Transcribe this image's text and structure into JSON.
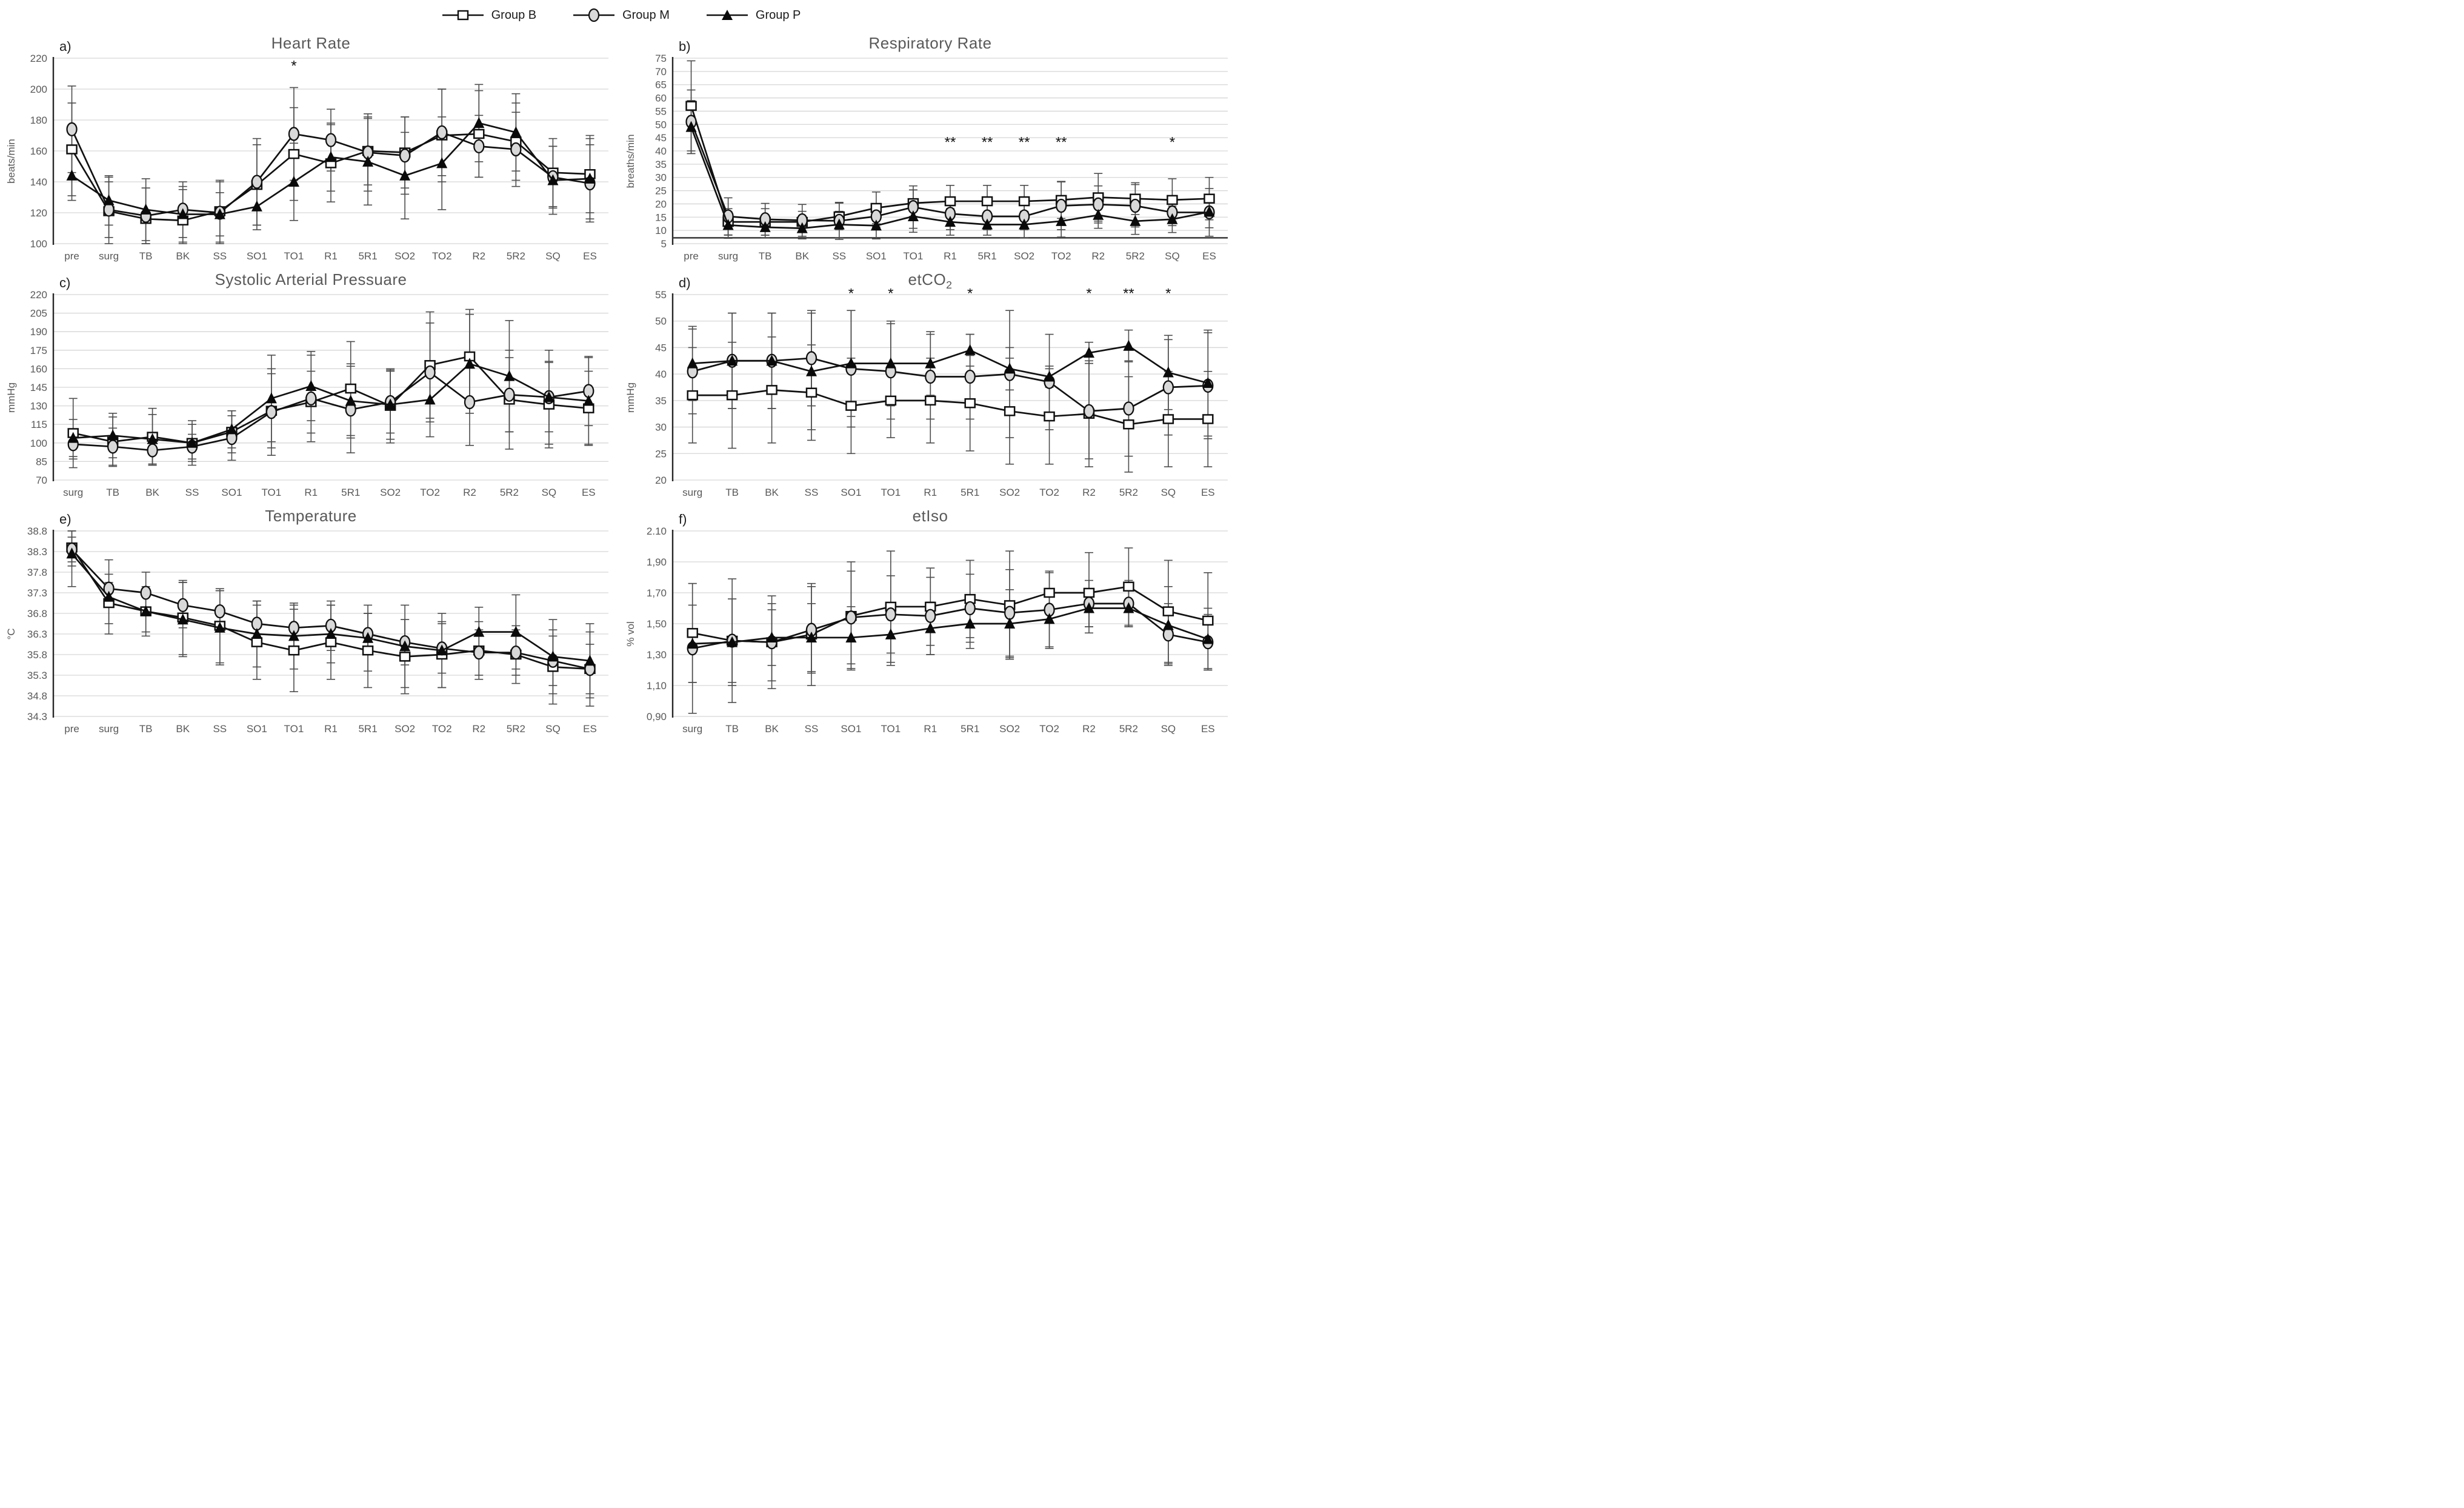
{
  "legend": {
    "items": [
      {
        "label": "Group B",
        "marker": "square"
      },
      {
        "label": "Group M",
        "marker": "circle"
      },
      {
        "label": "Group P",
        "marker": "triangle"
      }
    ]
  },
  "style": {
    "line_color": "#111111",
    "error_color": "#4d4d4d",
    "grid_color": "#d6d6d6",
    "axis_color": "#262626",
    "title_color": "#595959",
    "tick_color": "#595959",
    "square_fill": "#ffffff",
    "circle_fill": "#d9d9d9",
    "triangle_fill": "#0a0a0a",
    "background": "#ffffff"
  },
  "chart_data": [
    {
      "type": "line",
      "panel_label": "a)",
      "title": "Heart Rate",
      "title_sub": "",
      "ylabel": "beats/min",
      "ylim": [
        100,
        220
      ],
      "ytick_values": [
        220,
        200,
        180,
        160,
        140,
        120,
        100
      ],
      "ytick_labels": [
        "220",
        "200",
        "180",
        "160",
        "140",
        "120",
        "100"
      ],
      "categories": [
        "pre",
        "surg",
        "TB",
        "BK",
        "SS",
        "SO1",
        "TO1",
        "R1",
        "5R1",
        "SO2",
        "TO2",
        "R2",
        "5R2",
        "SQ",
        "ES"
      ],
      "baseline": null,
      "series": [
        {
          "name": "Group B",
          "marker": "square",
          "values": [
            161,
            121,
            116,
            115,
            121,
            138,
            158,
            152,
            160,
            159,
            170,
            171,
            166,
            146,
            145
          ],
          "errors": [
            30,
            22,
            20,
            20,
            20,
            26,
            30,
            25,
            22,
            23,
            30,
            28,
            25,
            22,
            25
          ]
        },
        {
          "name": "Group M",
          "marker": "circle",
          "values": [
            174,
            122,
            118,
            122,
            120,
            140,
            171,
            167,
            159,
            157,
            172,
            163,
            161,
            143,
            139
          ],
          "errors": [
            28,
            18,
            18,
            18,
            20,
            28,
            30,
            20,
            25,
            25,
            28,
            20,
            24,
            20,
            25
          ]
        },
        {
          "name": "Group P",
          "marker": "triangle",
          "values": [
            144,
            128,
            122,
            119,
            119,
            124,
            140,
            156,
            153,
            144,
            152,
            178,
            172,
            141,
            142
          ],
          "errors": [
            16,
            16,
            20,
            18,
            14,
            15,
            25,
            22,
            28,
            28,
            30,
            25,
            25,
            22,
            26
          ]
        }
      ],
      "annotations": [
        {
          "category": "TO1",
          "text": "*",
          "y": 212
        }
      ]
    },
    {
      "type": "line",
      "panel_label": "b)",
      "title": "Respiratory Rate",
      "title_sub": "",
      "ylabel": "breaths/min",
      "ylim": [
        5,
        75
      ],
      "ytick_values": [
        75,
        70,
        65,
        60,
        55,
        50,
        45,
        40,
        35,
        30,
        25,
        20,
        15,
        10,
        5
      ],
      "ytick_labels": [
        "75",
        "70",
        "65",
        "60",
        "55",
        "50",
        "45",
        "40",
        "35",
        "30",
        "25",
        "20",
        "15",
        "10",
        "5"
      ],
      "categories": [
        "pre",
        "surg",
        "TB",
        "BK",
        "SS",
        "SO1",
        "TO1",
        "R1",
        "5R1",
        "SO2",
        "TO2",
        "R2",
        "5R2",
        "SQ",
        "ES"
      ],
      "baseline": 7.2,
      "series": [
        {
          "name": "Group B",
          "marker": "square",
          "values": [
            57,
            13.2,
            13.2,
            13.2,
            15.3,
            18.5,
            20.3,
            21,
            21,
            21,
            21.5,
            22.5,
            22,
            21.5,
            22
          ],
          "errors": [
            17,
            5,
            5,
            4,
            5,
            6,
            5,
            6,
            6,
            6,
            7,
            9,
            6,
            8,
            8
          ]
        },
        {
          "name": "Group M",
          "marker": "circle",
          "values": [
            51,
            15.3,
            14.2,
            13.8,
            13.6,
            15.3,
            18.8,
            16.3,
            15.3,
            15.3,
            19.3,
            19.8,
            19.3,
            16.8,
            16.8
          ],
          "errors": [
            12,
            7,
            6,
            6,
            7,
            4,
            8,
            6,
            5,
            5,
            9,
            7,
            8,
            5,
            9
          ]
        },
        {
          "name": "Group P",
          "marker": "triangle",
          "values": [
            49,
            12,
            11.2,
            10.8,
            12.2,
            11.8,
            15.3,
            13.2,
            12.2,
            12.2,
            13.5,
            15.8,
            13.5,
            14.2,
            17
          ],
          "errors": [
            10,
            5,
            4,
            4,
            5,
            5,
            6,
            5,
            4,
            5,
            6,
            5,
            5,
            5,
            6
          ]
        }
      ],
      "annotations": [
        {
          "category": "R1",
          "text": "**",
          "y": 41.5
        },
        {
          "category": "5R1",
          "text": "**",
          "y": 41.5
        },
        {
          "category": "SO2",
          "text": "**",
          "y": 41.5
        },
        {
          "category": "TO2",
          "text": "**",
          "y": 41.5
        },
        {
          "category": "SQ",
          "text": "*",
          "y": 41.5
        }
      ]
    },
    {
      "type": "line",
      "panel_label": "c)",
      "title": "Systolic Arterial Pressuare",
      "title_sub": "",
      "ylabel": "mmHg",
      "ylim": [
        70,
        220
      ],
      "ytick_values": [
        220,
        205,
        190,
        175,
        160,
        145,
        130,
        115,
        100,
        85,
        70
      ],
      "ytick_labels": [
        "220",
        "205",
        "190",
        "175",
        "160",
        "145",
        "130",
        "115",
        "100",
        "85",
        "70"
      ],
      "categories": [
        "surg",
        "TB",
        "BK",
        "SS",
        "SO1",
        "TO1",
        "R1",
        "5R1",
        "SO2",
        "TO2",
        "R2",
        "5R2",
        "SQ",
        "ES"
      ],
      "baseline": null,
      "series": [
        {
          "name": "Group B",
          "marker": "square",
          "values": [
            108,
            101,
            105,
            100,
            109,
            126,
            133,
            144,
            130,
            163,
            170,
            135,
            131,
            128
          ],
          "errors": [
            28,
            20,
            23,
            18,
            17,
            30,
            25,
            38,
            30,
            43,
            38,
            40,
            35,
            30
          ]
        },
        {
          "name": "Group M",
          "marker": "circle",
          "values": [
            99,
            97,
            94,
            97,
            104,
            125,
            136,
            127,
            133,
            157,
            133,
            139,
            137,
            142
          ],
          "errors": [
            12,
            15,
            12,
            10,
            18,
            35,
            35,
            35,
            25,
            40,
            35,
            30,
            28,
            28
          ]
        },
        {
          "name": "Group P",
          "marker": "triangle",
          "values": [
            104,
            106,
            103,
            100,
            111,
            136,
            146,
            134,
            131,
            135,
            164,
            154,
            137,
            134
          ],
          "errors": [
            15,
            18,
            20,
            15,
            15,
            35,
            28,
            30,
            28,
            30,
            40,
            45,
            38,
            35
          ]
        }
      ],
      "annotations": []
    },
    {
      "type": "line",
      "panel_label": "d)",
      "title": "etCO",
      "title_sub": "2",
      "ylabel": "mmHg",
      "ylim": [
        20,
        55
      ],
      "ytick_values": [
        55,
        50,
        45,
        40,
        35,
        30,
        25,
        20
      ],
      "ytick_labels": [
        "55",
        "50",
        "45",
        "40",
        "35",
        "30",
        "25",
        "20"
      ],
      "categories": [
        "surg",
        "TB",
        "BK",
        "SS",
        "SO1",
        "TO1",
        "R1",
        "5R1",
        "SO2",
        "TO2",
        "R2",
        "5R2",
        "SQ",
        "ES"
      ],
      "baseline": null,
      "series": [
        {
          "name": "Group B",
          "marker": "square",
          "values": [
            36,
            36,
            37,
            36.5,
            34,
            35,
            35,
            34.5,
            33,
            32,
            32.5,
            30.5,
            31.5,
            31.5
          ],
          "errors": [
            9,
            10,
            10,
            9,
            9,
            7,
            8,
            9,
            10,
            9,
            10,
            9,
            9,
            9
          ]
        },
        {
          "name": "Group M",
          "marker": "circle",
          "values": [
            40.5,
            42.5,
            42.5,
            43,
            41,
            40.5,
            39.5,
            39.5,
            40,
            38.5,
            33,
            33.5,
            37.5,
            37.8
          ],
          "errors": [
            8,
            9,
            9,
            9,
            11,
            9,
            8,
            8,
            12,
            9,
            9,
            9,
            9,
            10
          ]
        },
        {
          "name": "Group P",
          "marker": "triangle",
          "values": [
            42,
            42.5,
            42.5,
            40.5,
            42,
            42,
            42,
            44.5,
            41,
            39.5,
            44,
            45.3,
            40.3,
            38.3
          ],
          "errors": [
            7,
            9,
            9,
            11,
            10,
            8,
            6,
            3,
            4,
            2,
            2,
            3,
            7,
            10
          ]
        }
      ],
      "annotations": [
        {
          "category": "SO1",
          "text": "*",
          "y": 54.3
        },
        {
          "category": "TO1",
          "text": "*",
          "y": 54.3
        },
        {
          "category": "5R1",
          "text": "*",
          "y": 54.3
        },
        {
          "category": "R2",
          "text": "*",
          "y": 54.3
        },
        {
          "category": "5R2",
          "text": "**",
          "y": 54.3
        },
        {
          "category": "SQ",
          "text": "*",
          "y": 54.3
        }
      ]
    },
    {
      "type": "line",
      "panel_label": "e)",
      "title": "Temperature",
      "title_sub": "",
      "ylabel": "°C",
      "ylim": [
        34.3,
        38.8
      ],
      "ytick_values": [
        38.8,
        38.3,
        37.8,
        37.3,
        36.8,
        36.3,
        35.8,
        35.3,
        34.8,
        34.3
      ],
      "ytick_labels": [
        "38.8",
        "38.3",
        "37.8",
        "37.3",
        "36.8",
        "36.3",
        "35.8",
        "35.3",
        "34.8",
        "34.3"
      ],
      "categories": [
        "pre",
        "surg",
        "TB",
        "BK",
        "SS",
        "SO1",
        "TO1",
        "R1",
        "5R1",
        "SO2",
        "TO2",
        "R2",
        "5R2",
        "SQ",
        "ES"
      ],
      "baseline": null,
      "series": [
        {
          "name": "Group B",
          "marker": "square",
          "values": [
            38.4,
            37.05,
            36.85,
            36.7,
            36.5,
            36.1,
            35.9,
            36.1,
            35.9,
            35.75,
            35.8,
            35.9,
            35.8,
            35.5,
            35.45
          ],
          "errors": [
            0.45,
            0.5,
            0.6,
            0.9,
            0.9,
            0.9,
            1.0,
            0.9,
            0.9,
            0.9,
            0.8,
            0.7,
            0.7,
            0.9,
            0.9
          ]
        },
        {
          "name": "Group M",
          "marker": "circle",
          "values": [
            38.35,
            37.4,
            37.3,
            37.0,
            36.85,
            36.55,
            36.45,
            36.5,
            36.3,
            36.1,
            35.95,
            35.85,
            35.85,
            35.65,
            35.45
          ],
          "errors": [
            0.3,
            0.35,
            0.5,
            0.55,
            0.5,
            0.55,
            0.55,
            0.6,
            0.5,
            0.55,
            0.6,
            0.55,
            0.55,
            0.6,
            0.6
          ]
        },
        {
          "name": "Group P",
          "marker": "triangle",
          "values": [
            38.25,
            37.2,
            36.85,
            36.65,
            36.45,
            36.3,
            36.25,
            36.3,
            36.2,
            36.0,
            35.9,
            36.35,
            36.35,
            35.75,
            35.65
          ],
          "errors": [
            0.8,
            0.9,
            0.5,
            0.9,
            0.9,
            0.8,
            0.8,
            0.7,
            0.8,
            1.0,
            0.9,
            0.6,
            0.9,
            0.9,
            0.9
          ]
        }
      ],
      "annotations": []
    },
    {
      "type": "line",
      "panel_label": "f)",
      "title": "etIso",
      "title_sub": "",
      "ylabel": "% vol",
      "ylim": [
        0.9,
        2.1
      ],
      "ytick_values": [
        2.1,
        1.9,
        1.7,
        1.5,
        1.3,
        1.1,
        0.9
      ],
      "ytick_labels": [
        "2.10",
        "1,90",
        "1,70",
        "1,50",
        "1,30",
        "1,10",
        "0,90"
      ],
      "categories": [
        "surg",
        "TB",
        "BK",
        "SS",
        "SO1",
        "TO1",
        "R1",
        "5R1",
        "SO2",
        "TO2",
        "R2",
        "5R2",
        "SQ",
        "ES"
      ],
      "baseline": null,
      "series": [
        {
          "name": "Group B",
          "marker": "square",
          "values": [
            1.44,
            1.39,
            1.38,
            1.43,
            1.55,
            1.61,
            1.61,
            1.66,
            1.62,
            1.7,
            1.7,
            1.74,
            1.58,
            1.52
          ],
          "errors": [
            0.32,
            0.4,
            0.3,
            0.33,
            0.35,
            0.36,
            0.25,
            0.25,
            0.35,
            0.13,
            0.26,
            0.25,
            0.33,
            0.31
          ]
        },
        {
          "name": "Group M",
          "marker": "circle",
          "values": [
            1.34,
            1.39,
            1.38,
            1.46,
            1.54,
            1.56,
            1.55,
            1.6,
            1.57,
            1.59,
            1.63,
            1.63,
            1.43,
            1.38
          ],
          "errors": [
            0.42,
            0.27,
            0.25,
            0.28,
            0.3,
            0.25,
            0.25,
            0.22,
            0.28,
            0.25,
            0.15,
            0.15,
            0.2,
            0.18
          ]
        },
        {
          "name": "Group P",
          "marker": "triangle",
          "values": [
            1.37,
            1.38,
            1.41,
            1.41,
            1.41,
            1.43,
            1.47,
            1.5,
            1.5,
            1.53,
            1.6,
            1.6,
            1.49,
            1.4
          ],
          "errors": [
            0.25,
            0.28,
            0.18,
            0.22,
            0.2,
            0.2,
            0.17,
            0.16,
            0.22,
            0.18,
            0.12,
            0.12,
            0.25,
            0.2
          ]
        }
      ],
      "annotations": []
    }
  ]
}
